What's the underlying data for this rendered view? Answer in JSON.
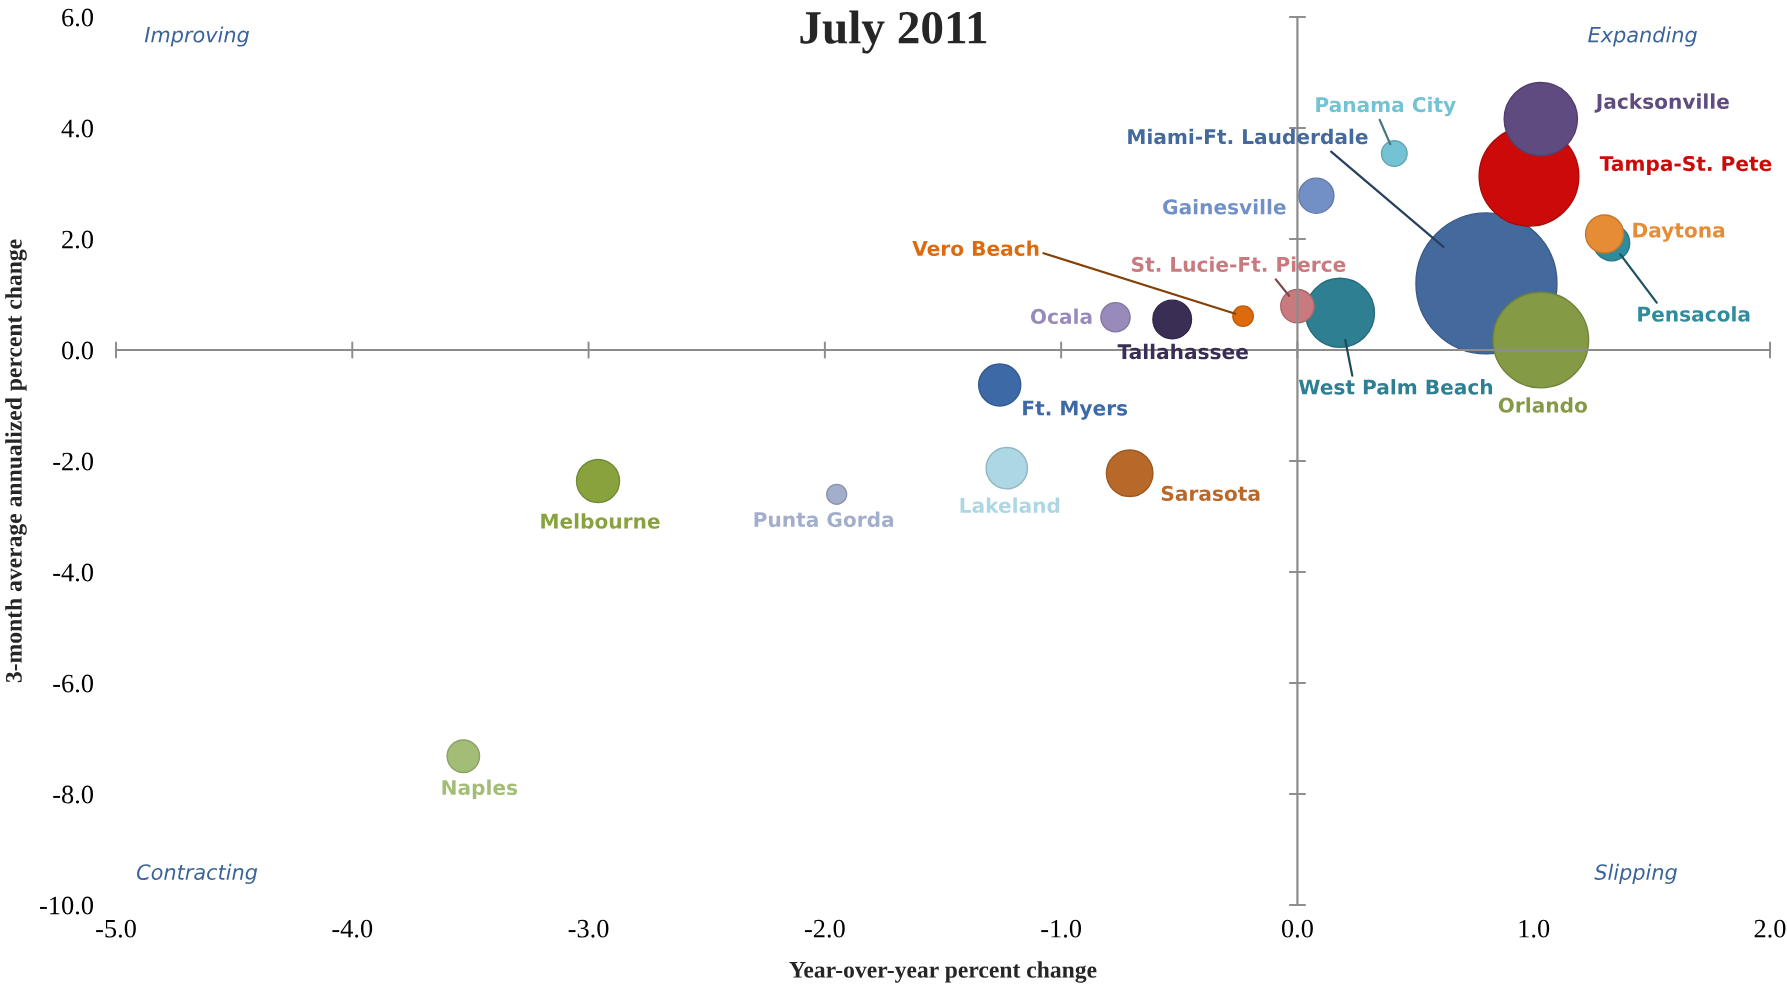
{
  "chart_data": {
    "type": "bubble",
    "title": "July 2011",
    "xlabel": "Year-over-year percent change",
    "ylabel": "3-month average annualized percent change",
    "xlim": [
      -5,
      2
    ],
    "xticks": [
      {
        "value": -5,
        "label": "-5.0"
      },
      {
        "value": -4,
        "label": "-4.0"
      },
      {
        "value": -3,
        "label": "-3.0"
      },
      {
        "value": -2,
        "label": "-2.0"
      },
      {
        "value": -1,
        "label": "-1.0"
      },
      {
        "value": 0,
        "label": "0.0"
      },
      {
        "value": 1,
        "label": "1.0"
      },
      {
        "value": 2,
        "label": "2.0"
      }
    ],
    "ylim": [
      -10,
      6
    ],
    "yticks": [
      {
        "value": -10,
        "label": "-10.0"
      },
      {
        "value": -8,
        "label": "-8.0"
      },
      {
        "value": -6,
        "label": "-6.0"
      },
      {
        "value": -4,
        "label": "-4.0"
      },
      {
        "value": -2,
        "label": "-2.0"
      },
      {
        "value": 0,
        "label": "0.0"
      },
      {
        "value": 2,
        "label": "2.0"
      },
      {
        "value": 4,
        "label": "4.0"
      },
      {
        "value": 6,
        "label": "6.0"
      }
    ],
    "legend": false,
    "annotations": [
      "Improving",
      "Expanding",
      "Contracting",
      "Slipping"
    ],
    "series": [
      {
        "name": "Miami-Ft. Lauderdale",
        "color": "#44699c",
        "x": [
          0.8
        ],
        "values": [
          1.2
        ],
        "sizes": [
          1
        ]
      },
      {
        "name": "Tampa-St. Pete",
        "color": "#cc0a0a",
        "x": [
          0.98
        ],
        "values": [
          3.13
        ],
        "sizes": [
          0.5
        ]
      },
      {
        "name": "Jacksonville",
        "color": "#5f4b80",
        "x": [
          1.03
        ],
        "values": [
          4.16
        ],
        "sizes": [
          0.27
        ]
      },
      {
        "name": "Orlando",
        "color": "#859a45",
        "x": [
          1.03
        ],
        "values": [
          0.18
        ],
        "sizes": [
          0.46
        ]
      },
      {
        "name": "Pensacola",
        "color": "#2e8c9e",
        "x": [
          1.33
        ],
        "values": [
          1.93
        ],
        "sizes": [
          0.065
        ]
      },
      {
        "name": "Daytona",
        "color": "#e58c35",
        "x": [
          1.3
        ],
        "values": [
          2.09
        ],
        "sizes": [
          0.073
        ]
      },
      {
        "name": "West Palm Beach",
        "color": "#2f7f93",
        "x": [
          0.18
        ],
        "values": [
          0.67
        ],
        "sizes": [
          0.24
        ]
      },
      {
        "name": "St. Lucie-Ft. Pierce",
        "color": "#c97a7e",
        "x": [
          0.0
        ],
        "values": [
          0.79
        ],
        "sizes": [
          0.056
        ]
      },
      {
        "name": "Panama City",
        "color": "#74c3d4",
        "x": [
          0.41
        ],
        "values": [
          3.54
        ],
        "sizes": [
          0.033
        ]
      },
      {
        "name": "Gainesville",
        "color": "#7390c6",
        "x": [
          0.08
        ],
        "values": [
          2.78
        ],
        "sizes": [
          0.062
        ]
      },
      {
        "name": "Vero Beach",
        "color": "#dd6a0c",
        "x": [
          -0.23
        ],
        "values": [
          0.61
        ],
        "sizes": [
          0.021
        ]
      },
      {
        "name": "Tallahassee",
        "color": "#3b2e54",
        "x": [
          -0.53
        ],
        "values": [
          0.55
        ],
        "sizes": [
          0.075
        ]
      },
      {
        "name": "Ocala",
        "color": "#988bbb",
        "x": [
          -0.77
        ],
        "values": [
          0.59
        ],
        "sizes": [
          0.043
        ]
      },
      {
        "name": "Ft. Myers",
        "color": "#3d6aa6",
        "x": [
          -1.26
        ],
        "values": [
          -0.63
        ],
        "sizes": [
          0.089
        ]
      },
      {
        "name": "Lakeland",
        "color": "#acd7e3",
        "x": [
          -1.23
        ],
        "values": [
          -2.13
        ],
        "sizes": [
          0.086
        ]
      },
      {
        "name": "Sarasota",
        "color": "#b8692a",
        "x": [
          -0.71
        ],
        "values": [
          -2.22
        ],
        "sizes": [
          0.109
        ]
      },
      {
        "name": "Punta Gorda",
        "color": "#a3aecb",
        "x": [
          -1.95
        ],
        "values": [
          -2.6
        ],
        "sizes": [
          0.02
        ]
      },
      {
        "name": "Melbourne",
        "color": "#88a33e",
        "x": [
          -2.96
        ],
        "values": [
          -2.36
        ],
        "sizes": [
          0.093
        ]
      },
      {
        "name": "Naples",
        "color": "#a3bd77",
        "x": [
          -3.53
        ],
        "values": [
          -7.32
        ],
        "sizes": [
          0.053
        ]
      }
    ]
  }
}
